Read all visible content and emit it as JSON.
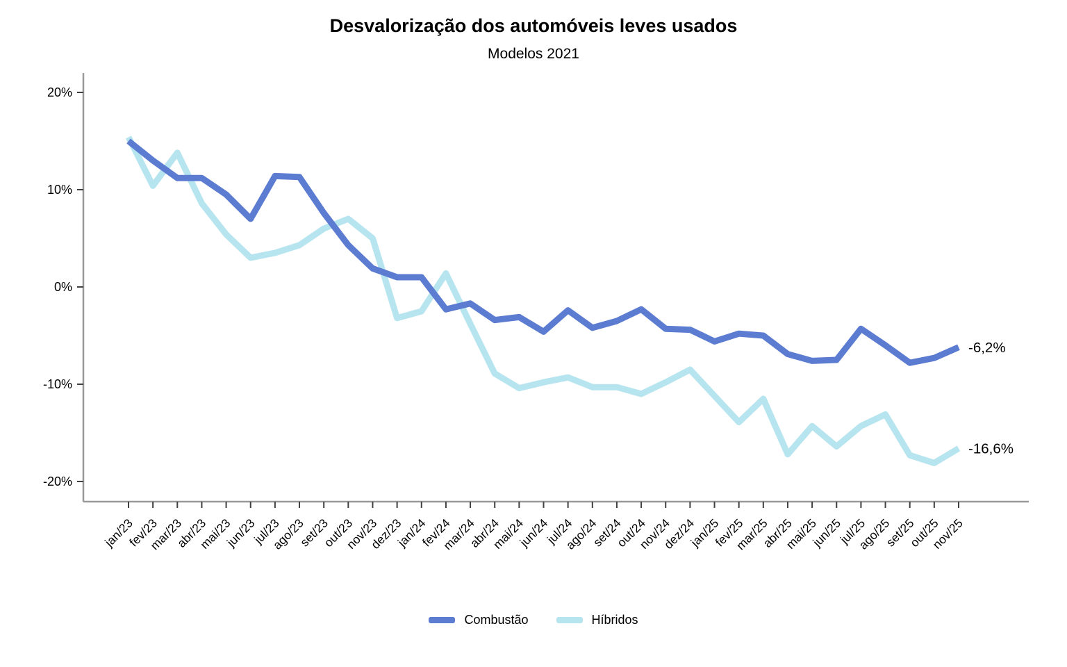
{
  "header": {
    "title": "Desvalorização dos automóveis leves usados",
    "subtitle": "Modelos 2021"
  },
  "chart_data": {
    "type": "line",
    "x": [
      "jan/23",
      "fev/23",
      "mar/23",
      "abr/23",
      "mai/23",
      "jun/23",
      "jul/23",
      "ago/23",
      "set/23",
      "out/23",
      "nov/23",
      "dez/23",
      "jan/24",
      "fev/24",
      "mar/24",
      "abr/24",
      "mai/24",
      "jun/24",
      "jul/24",
      "ago/24",
      "set/24",
      "out/24",
      "nov/24",
      "dez/24",
      "jan/25",
      "fev/25",
      "mar/25",
      "abr/25",
      "mai/25",
      "jun/25",
      "jul/25",
      "ago/25",
      "set/25",
      "out/25",
      "nov/25"
    ],
    "series": [
      {
        "name": "Combustão",
        "color": "#5c7cd1",
        "end_label": "-6,2%",
        "values": [
          15.0,
          13.0,
          11.2,
          11.2,
          9.5,
          7.0,
          11.4,
          11.3,
          7.6,
          4.3,
          1.9,
          1.0,
          1.0,
          -2.3,
          -1.7,
          -3.4,
          -3.1,
          -4.6,
          -2.4,
          -4.2,
          -3.5,
          -2.3,
          -4.3,
          -4.4,
          -5.6,
          -4.8,
          -5.0,
          -6.9,
          -7.6,
          -7.5,
          -4.3,
          -6.0,
          -7.8,
          -7.3,
          -6.2
        ]
      },
      {
        "name": "Híbridos",
        "color": "#b6e4ef",
        "end_label": "-16,6%",
        "values": [
          15.4,
          10.4,
          13.8,
          8.6,
          5.4,
          3.0,
          3.5,
          4.3,
          6.0,
          7.0,
          5.0,
          -3.2,
          -2.5,
          1.4,
          -3.8,
          -8.9,
          -10.4,
          -9.8,
          -9.3,
          -10.3,
          -10.3,
          -11.0,
          -9.8,
          -8.5,
          -11.2,
          -13.9,
          -11.5,
          -17.2,
          -14.3,
          -16.4,
          -14.3,
          -13.1,
          -17.3,
          -18.1,
          -16.6
        ]
      }
    ],
    "y_ticks": [
      {
        "value": 20,
        "label": "20%"
      },
      {
        "value": 10,
        "label": "10%"
      },
      {
        "value": 0,
        "label": "0%"
      },
      {
        "value": -10,
        "label": "-10%"
      },
      {
        "value": -20,
        "label": "-20%"
      }
    ],
    "ylim": [
      -22,
      22
    ],
    "xlabel": "",
    "ylabel": "",
    "grid": false,
    "legend_position": "bottom"
  },
  "colors": {
    "axis_line": "#999999",
    "tick_mark": "#404040",
    "label_text": "#000000"
  }
}
